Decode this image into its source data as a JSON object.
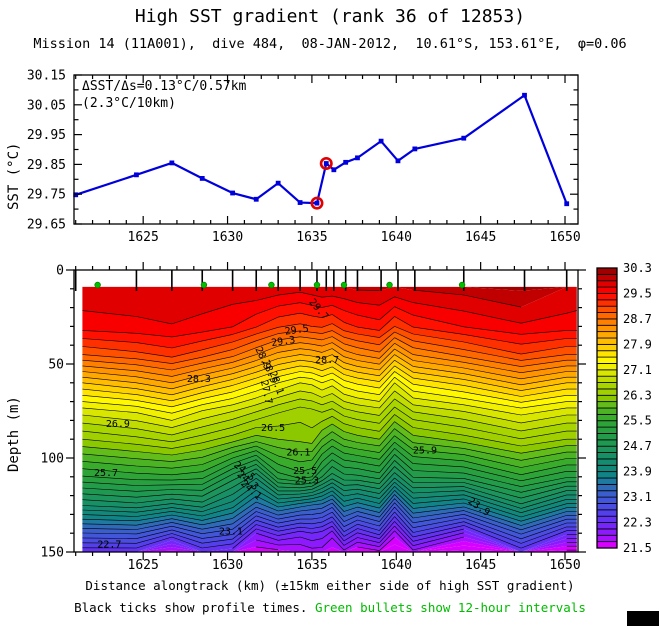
{
  "header": {
    "title": "High SST gradient (rank 36 of 12853)",
    "subtitle": "Mission 14 (11A001),  dive 484,  08-JAN-2012,  10.61°S, 153.61°E,  φ=0.06"
  },
  "caption": {
    "black_part": "Black ticks show profile times. ",
    "green_part": "Green bullets show 12-hour intervals",
    "green_color": "#00bb00"
  },
  "chart_data": [
    {
      "type": "line",
      "name": "sst-track",
      "ylabel": "SST (°C)",
      "annotation_line1": "ΔSST/Δs=0.13°C/0.57km",
      "annotation_line2": "(2.3°C/10km)",
      "xlim": [
        1620.9,
        1650.77
      ],
      "ylim": [
        29.65,
        30.15
      ],
      "xticks": [
        1625,
        1630,
        1635,
        1640,
        1645,
        1650
      ],
      "yticks": [
        29.65,
        29.75,
        29.85,
        29.95,
        30.05,
        30.15
      ],
      "x": [
        1621.0,
        1624.6,
        1626.7,
        1628.5,
        1630.3,
        1631.7,
        1633.0,
        1634.3,
        1635.3,
        1635.85,
        1636.3,
        1637.0,
        1637.7,
        1639.1,
        1640.1,
        1641.1,
        1644.0,
        1647.6,
        1650.1
      ],
      "sst": [
        29.748,
        29.815,
        29.855,
        29.803,
        29.754,
        29.733,
        29.787,
        29.722,
        29.72,
        29.853,
        29.832,
        29.857,
        29.872,
        29.928,
        29.862,
        29.902,
        29.938,
        30.082,
        29.718
      ],
      "highlight_indices": [
        8,
        9
      ],
      "line_color": "#0000dd",
      "highlight_ring_color": "#e00000"
    },
    {
      "type": "heatmap",
      "name": "temperature-section",
      "ylabel": "Depth (m)",
      "xlabel": "Distance alongtrack (km) (±15km either side of high SST gradient)",
      "xlim": [
        1620.9,
        1650.77
      ],
      "depth_lim": [
        0,
        150
      ],
      "xticks": [
        1625,
        1630,
        1635,
        1640,
        1645,
        1650
      ],
      "yticks": [
        0,
        50,
        100,
        150
      ],
      "contour_interval": 0.2,
      "data_top_depth": 9,
      "depths": [
        9,
        30,
        45,
        60,
        75,
        90,
        110,
        125,
        140,
        150
      ],
      "stations": [
        1621.4,
        1624.6,
        1626.7,
        1628.5,
        1630.3,
        1631.7,
        1633.0,
        1634.3,
        1635.0,
        1635.6,
        1636.2,
        1636.9,
        1637.7,
        1639.0,
        1639.9,
        1641.0,
        1644.0,
        1647.4,
        1650.1,
        1650.7
      ],
      "temps": [
        [
          29.85,
          29.6,
          28.9,
          27.9,
          27.0,
          26.3,
          25.28,
          24.32,
          23.09,
          22.33
        ],
        [
          29.85,
          29.65,
          29.04,
          28.1,
          27.14,
          26.44,
          25.4,
          24.43,
          23.13,
          22.33
        ],
        [
          29.85,
          29.69,
          29.18,
          28.3,
          27.36,
          26.58,
          25.44,
          24.24,
          22.72,
          21.63
        ],
        [
          29.85,
          29.63,
          28.99,
          28.03,
          27.09,
          26.4,
          25.36,
          24.4,
          23.12,
          22.33
        ],
        [
          29.85,
          29.51,
          28.77,
          27.78,
          26.91,
          26.2,
          24.8,
          24.0,
          22.95,
          22.15
        ],
        [
          29.9,
          29.32,
          28.5,
          27.54,
          26.72,
          26.0,
          24.35,
          23.4,
          22.1,
          21.55
        ],
        [
          29.85,
          29.13,
          28.23,
          27.3,
          26.53,
          26.1,
          25.2,
          23.8,
          22.4,
          21.6
        ],
        [
          29.8,
          29.05,
          28.1,
          27.1,
          26.4,
          26.15,
          25.4,
          23.6,
          22.2,
          21.7
        ],
        [
          29.85,
          29.1,
          28.15,
          27.15,
          26.45,
          26.2,
          25.3,
          23.5,
          22.3,
          21.8
        ],
        [
          29.9,
          29.13,
          28.23,
          27.3,
          26.53,
          25.9,
          24.9,
          23.44,
          22.22,
          21.8
        ],
        [
          29.9,
          29.04,
          28.1,
          27.18,
          26.44,
          25.7,
          24.6,
          23.2,
          22.0,
          21.6
        ],
        [
          29.9,
          29.23,
          28.37,
          27.42,
          26.63,
          25.9,
          24.82,
          23.76,
          22.64,
          21.81
        ],
        [
          29.95,
          29.32,
          28.5,
          27.54,
          26.72,
          26.0,
          24.85,
          23.6,
          22.28,
          21.49
        ],
        [
          29.95,
          29.41,
          28.63,
          27.66,
          26.81,
          26.1,
          24.98,
          23.84,
          22.58,
          21.63
        ],
        [
          29.9,
          29.1,
          28.1,
          27.1,
          26.4,
          25.6,
          24.36,
          22.99,
          21.8,
          21.3
        ],
        [
          29.95,
          29.32,
          28.5,
          27.54,
          26.72,
          26.0,
          24.92,
          23.84,
          22.67,
          21.81
        ],
        [
          30.0,
          29.51,
          28.77,
          27.78,
          26.91,
          26.2,
          24.98,
          23.6,
          22.08,
          21.2
        ],
        [
          30.15,
          29.66,
          29.09,
          28.17,
          27.2,
          26.49,
          25.44,
          24.46,
          23.14,
          22.33
        ],
        [
          29.9,
          29.6,
          28.9,
          27.9,
          27.0,
          26.3,
          25.13,
          23.84,
          22.37,
          21.4
        ],
        [
          29.85,
          29.6,
          28.9,
          27.9,
          27.0,
          26.3,
          25.13,
          23.84,
          22.37,
          21.4
        ]
      ],
      "profile_tick_x": [
        1621.0,
        1624.6,
        1626.7,
        1628.5,
        1630.3,
        1631.7,
        1633.0,
        1634.3,
        1635.3,
        1635.85,
        1636.3,
        1637.0,
        1637.7,
        1639.1,
        1640.1,
        1641.1,
        1644.0,
        1647.6,
        1650.1
      ],
      "bullet_x": [
        1622.3,
        1628.6,
        1632.6,
        1635.3,
        1636.9,
        1639.6,
        1643.9
      ],
      "bullet_color": "#00c000",
      "contour_labels": [
        {
          "v": "29.7",
          "x": 1635.4,
          "d": 21,
          "r": 50
        },
        {
          "v": "29.5",
          "x": 1634.1,
          "d": 32,
          "r": -8
        },
        {
          "v": "29.3",
          "x": 1633.3,
          "d": 38,
          "r": -8
        },
        {
          "v": "28.9",
          "x": 1632.1,
          "d": 47,
          "r": 65
        },
        {
          "v": "28.5",
          "x": 1632.5,
          "d": 54,
          "r": 68
        },
        {
          "v": "28.1",
          "x": 1632.9,
          "d": 60,
          "r": 70
        },
        {
          "v": "27.7",
          "x": 1632.3,
          "d": 65,
          "r": 78
        },
        {
          "v": "28.7",
          "x": 1635.9,
          "d": 48,
          "r": 0
        },
        {
          "v": "28.3",
          "x": 1628.3,
          "d": 58,
          "r": 0
        },
        {
          "v": "26.9",
          "x": 1623.5,
          "d": 82,
          "r": 0
        },
        {
          "v": "26.5",
          "x": 1632.7,
          "d": 84,
          "r": 0
        },
        {
          "v": "26.1",
          "x": 1634.2,
          "d": 97,
          "r": 0
        },
        {
          "v": "25.7",
          "x": 1622.8,
          "d": 108,
          "r": 0
        },
        {
          "v": "25.9",
          "x": 1641.7,
          "d": 96,
          "r": 0
        },
        {
          "v": "24.5",
          "x": 1631.0,
          "d": 107,
          "r": 40
        },
        {
          "v": "24.3",
          "x": 1631.2,
          "d": 112,
          "r": 40
        },
        {
          "v": "24.1",
          "x": 1631.4,
          "d": 117,
          "r": 42
        },
        {
          "v": "25.5",
          "x": 1634.6,
          "d": 107,
          "r": 0
        },
        {
          "v": "25.3",
          "x": 1634.7,
          "d": 112,
          "r": 0
        },
        {
          "v": "23.1",
          "x": 1630.2,
          "d": 139,
          "r": 0
        },
        {
          "v": "22.7",
          "x": 1623.0,
          "d": 146,
          "r": 0
        },
        {
          "v": "23.9",
          "x": 1644.9,
          "d": 126,
          "r": 35
        }
      ]
    }
  ],
  "colorbar": {
    "min": 21.5,
    "max": 30.3,
    "step": 0.2,
    "tick_labels": [
      "21.5",
      "22.3",
      "23.1",
      "23.9",
      "24.7",
      "25.5",
      "26.3",
      "27.1",
      "27.9",
      "28.7",
      "29.5",
      "30.3"
    ],
    "colors": [
      "#d800ff",
      "#a810ff",
      "#8c1afc",
      "#7526f8",
      "#6332f2",
      "#5340ec",
      "#4a4ce2",
      "#4156d8",
      "#3a5ecc",
      "#2f6ab8",
      "#1f7aa2",
      "#108486",
      "#12887a",
      "#158c70",
      "#189066",
      "#1c945c",
      "#1f9852",
      "#239c4a",
      "#28a040",
      "#2ea438",
      "#3aac2c",
      "#4cb424",
      "#62bc1a",
      "#8cc800",
      "#a0d000",
      "#a8d400",
      "#c0dc00",
      "#d8e600",
      "#f0f000",
      "#fff800",
      "#ffe400",
      "#ffd000",
      "#ffbc00",
      "#ffa800",
      "#ff9400",
      "#ff8000",
      "#ff6800",
      "#ff5000",
      "#ff3000",
      "#ff1000",
      "#f80000",
      "#e00000",
      "#c00000",
      "#a00000"
    ]
  }
}
